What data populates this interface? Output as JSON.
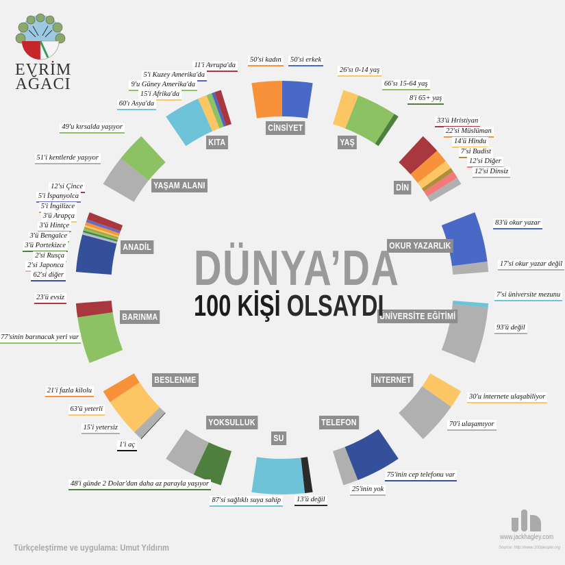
{
  "logo": {
    "text_line1": "EVRİM",
    "text_line2": "AĞACI"
  },
  "title": {
    "line1": "DÜNYA’DA",
    "line2_a": "100 KİŞİ",
    "line2_b": "OLSAYDI"
  },
  "footer": {
    "credit": "Türkçeleştirme ve uygulama: Umut Yıldırım",
    "site": "www.jackhagley.com",
    "source": "Source: http://www.100people.org"
  },
  "chart_data": {
    "type": "radial-stacked-bar",
    "total": 100,
    "categories": [
      {
        "name": "CİNSİYET",
        "segments": [
          {
            "label": "50'si kadın",
            "value": 50,
            "color": "#f7923a"
          },
          {
            "label": "50'si erkek",
            "value": 50,
            "color": "#4a69c6"
          }
        ]
      },
      {
        "name": "YAŞ",
        "segments": [
          {
            "label": "26'sı 0-14 yaş",
            "value": 26,
            "color": "#fdc664"
          },
          {
            "label": "66'sı 15-64 yaş",
            "value": 66,
            "color": "#8cc263"
          },
          {
            "label": "8'i 65+ yaş",
            "value": 8,
            "color": "#4f7f3e"
          }
        ]
      },
      {
        "name": "DİN",
        "segments": [
          {
            "label": "33'ü Hristiyan",
            "value": 33,
            "color": "#a8383e"
          },
          {
            "label": "22'si Müslüman",
            "value": 22,
            "color": "#f7923a"
          },
          {
            "label": "14'ü Hindu",
            "value": 14,
            "color": "#fdc664"
          },
          {
            "label": "7'si Budist",
            "value": 7,
            "color": "#b08d3a"
          },
          {
            "label": "12'si Diğer",
            "value": 12,
            "color": "#f27a7a"
          },
          {
            "label": "12'si Dinsiz",
            "value": 12,
            "color": "#b0b0b0"
          }
        ]
      },
      {
        "name": "OKUR YAZARLIK",
        "segments": [
          {
            "label": "83'ü okur yazar",
            "value": 83,
            "color": "#4a69c6"
          },
          {
            "label": "17'si okur yazar değil",
            "value": 17,
            "color": "#b0b0b0"
          }
        ]
      },
      {
        "name": "ÜNİVERSİTE EĞİTİMİ",
        "segments": [
          {
            "label": "7'si üniversite mezunu",
            "value": 7,
            "color": "#6ec3d8"
          },
          {
            "label": "93'ü değil",
            "value": 93,
            "color": "#b0b0b0"
          }
        ]
      },
      {
        "name": "İNTERNET",
        "segments": [
          {
            "label": "30'u internete ulaşabiliyor",
            "value": 30,
            "color": "#fdc664"
          },
          {
            "label": "70'i ulaşamıyor",
            "value": 70,
            "color": "#b0b0b0"
          }
        ]
      },
      {
        "name": "TELEFON",
        "segments": [
          {
            "label": "75'inin cep telefonu var",
            "value": 75,
            "color": "#34509a"
          },
          {
            "label": "25'inin yok",
            "value": 25,
            "color": "#b0b0b0"
          }
        ]
      },
      {
        "name": "SU",
        "segments": [
          {
            "label": "87'si sağlıklı suya sahip",
            "value": 87,
            "color": "#6ec3d8"
          },
          {
            "label": "13'ü değil",
            "value": 13,
            "color": "#2b2b2b"
          }
        ]
      },
      {
        "name": "YOKSULLUK",
        "segments": [
          {
            "label": "48'i günde 2 Dolar'dan daha az parayla yaşıyor",
            "value": 48,
            "color": "#4f7f3e"
          },
          {
            "label": "",
            "value": 52,
            "color": "#b0b0b0"
          }
        ]
      },
      {
        "name": "BESLENME",
        "segments": [
          {
            "label": "21'i fazla kilolu",
            "value": 21,
            "color": "#f7923a"
          },
          {
            "label": "63'ü yeterli",
            "value": 63,
            "color": "#fdc664"
          },
          {
            "label": "15'i yetersiz",
            "value": 15,
            "color": "#b0b0b0"
          },
          {
            "label": "1'i aç",
            "value": 1,
            "color": "#111111"
          }
        ]
      },
      {
        "name": "BARINMA",
        "segments": [
          {
            "label": "23'ü evsiz",
            "value": 23,
            "color": "#a8383e"
          },
          {
            "label": "77'sinin barınacak yeri var",
            "value": 77,
            "color": "#8cc263"
          }
        ]
      },
      {
        "name": "ANADİL",
        "segments": [
          {
            "label": "12'si Çince",
            "value": 12,
            "color": "#a8383e"
          },
          {
            "label": "5'i İspanyolca",
            "value": 5,
            "color": "#6a6cc0"
          },
          {
            "label": "5'i İngilizce",
            "value": 5,
            "color": "#f7923a"
          },
          {
            "label": "3'ü Arapça",
            "value": 3,
            "color": "#fdc664"
          },
          {
            "label": "3'ü Hintçe",
            "value": 3,
            "color": "#a4a43a"
          },
          {
            "label": "3'ü Bengalce",
            "value": 3,
            "color": "#8cc263"
          },
          {
            "label": "3'ü Portekizce",
            "value": 3,
            "color": "#4f7f3e"
          },
          {
            "label": "2'si Rusça",
            "value": 2,
            "color": "#7fc7c7"
          },
          {
            "label": "2'si Japonca",
            "value": 2,
            "color": "#d8b4c8"
          },
          {
            "label": "62'si diğer",
            "value": 62,
            "color": "#34509a"
          }
        ]
      },
      {
        "name": "YAŞAM ALANI",
        "segments": [
          {
            "label": "49'u kırsalda yaşıyor",
            "value": 49,
            "color": "#8cc263"
          },
          {
            "label": "51'i kentlerde yaşıyor",
            "value": 51,
            "color": "#b0b0b0"
          }
        ]
      },
      {
        "name": "KITA",
        "segments": [
          {
            "label": "11'i Avrupa'da",
            "value": 11,
            "color": "#a8383e"
          },
          {
            "label": "5'i Kuzey Amerika'da",
            "value": 5,
            "color": "#4a69c6"
          },
          {
            "label": "9'u Güney Amerika'da",
            "value": 9,
            "color": "#8cc263"
          },
          {
            "label": "15'i Afrika'da",
            "value": 15,
            "color": "#fdc664"
          },
          {
            "label": "60'ı Asya'da",
            "value": 60,
            "color": "#6ec3d8"
          }
        ]
      }
    ]
  }
}
